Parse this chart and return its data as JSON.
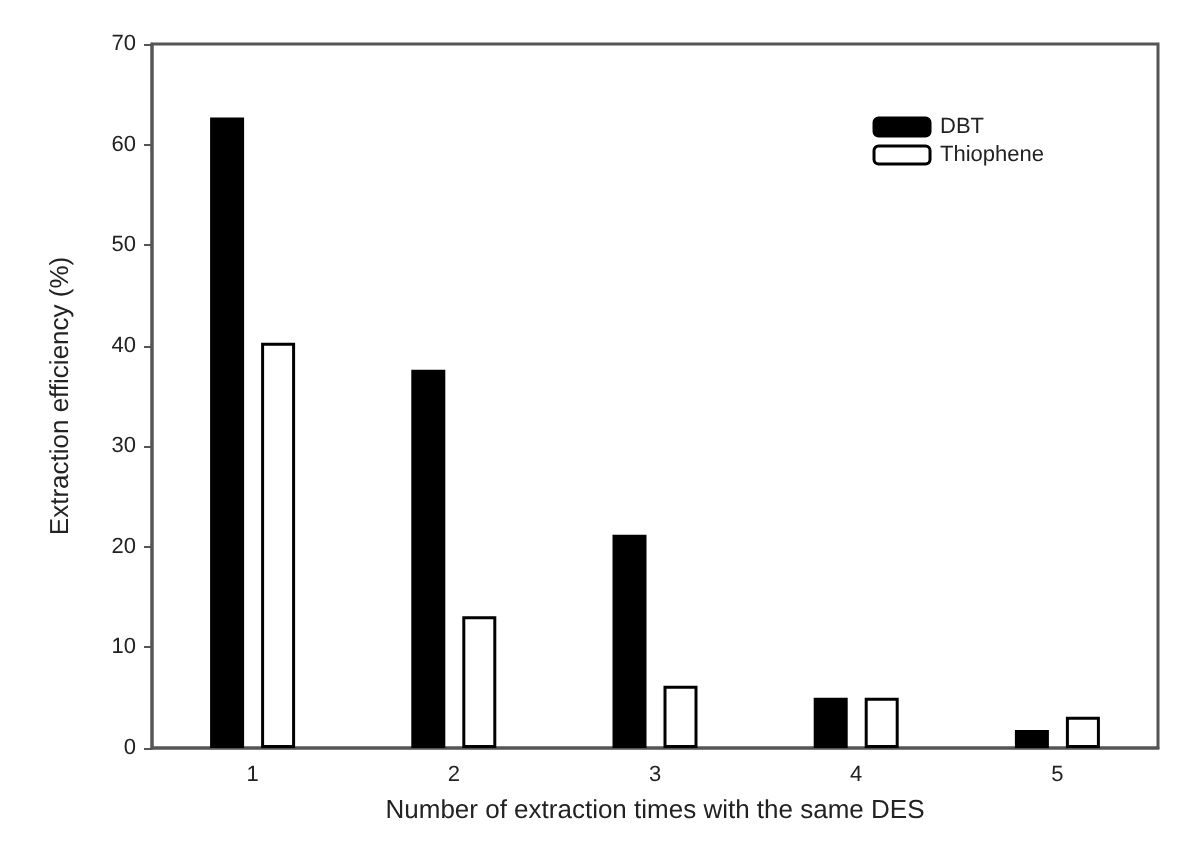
{
  "chart_data": {
    "type": "bar",
    "xlabel": "Number of extraction times with the same DES",
    "ylabel": "Extraction efficiency (%)",
    "categories": [
      "1",
      "2",
      "3",
      "4",
      "5"
    ],
    "series": [
      {
        "name": "DBT",
        "color": "#000000",
        "values": [
          62.7,
          37.6,
          21.2,
          5.0,
          1.8
        ]
      },
      {
        "name": "Thiophene",
        "color": "#ffffff",
        "values": [
          40.3,
          13.1,
          6.2,
          5.0,
          3.1
        ]
      }
    ],
    "ylim": [
      0,
      70
    ],
    "yticks": [
      0,
      10,
      20,
      30,
      40,
      50,
      60,
      70
    ],
    "grid": false,
    "legend": "top right"
  }
}
